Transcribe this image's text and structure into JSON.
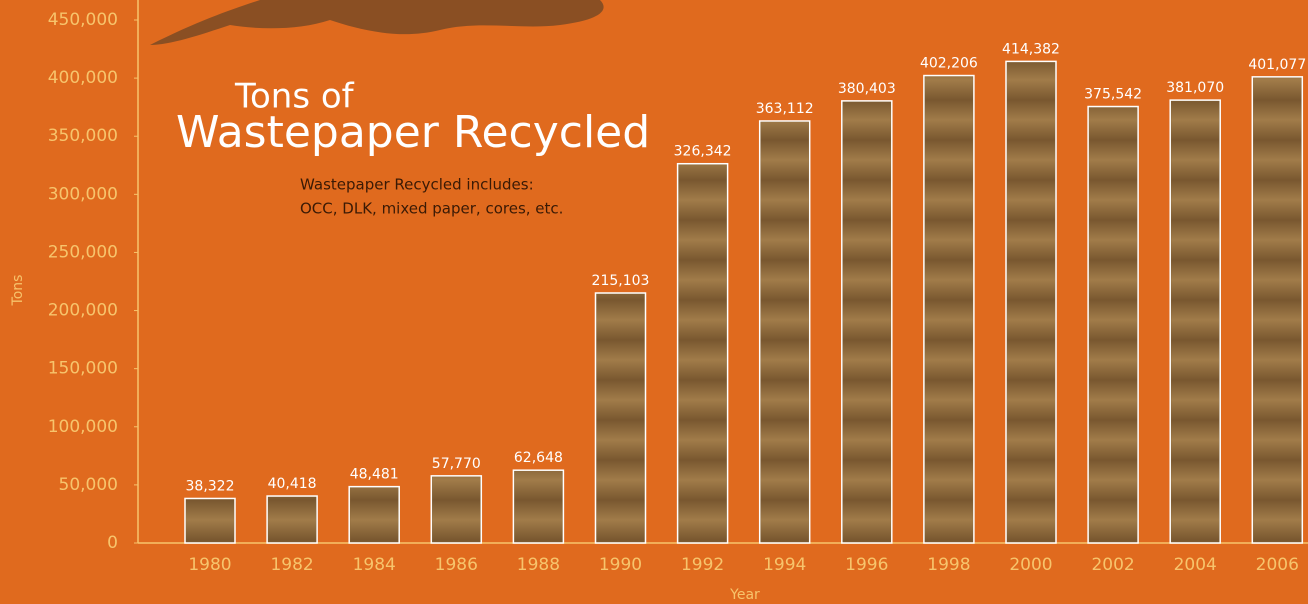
{
  "chart_data": {
    "type": "bar",
    "title": [
      "Tons of",
      "Wastepaper Recycled"
    ],
    "subtitle": [
      "Wastepaper Recycled includes:",
      "OCC, DLK, mixed paper, cores, etc."
    ],
    "x_label": "Year",
    "y_label": "Tons",
    "categories": [
      "1980",
      "1982",
      "1984",
      "1986",
      "1988",
      "1990",
      "1992",
      "1994",
      "1996",
      "1998",
      "2000",
      "2002",
      "2004",
      "2006"
    ],
    "values": [
      38322,
      40418,
      48481,
      57770,
      62648,
      215103,
      326342,
      363112,
      380403,
      402206,
      414382,
      375542,
      381070,
      401077
    ],
    "value_labels": [
      "38,322",
      "40,418",
      "48,481",
      "57,770",
      "62,648",
      "215,103",
      "326,342",
      "363,112",
      "380,403",
      "402,206",
      "414,382",
      "375,542",
      "381,070",
      "401,077"
    ],
    "color": "#8a6638",
    "ylim": [
      0,
      450000
    ],
    "yticks": [
      0,
      {
        "value": 50000,
        "label": "50,000"
      },
      {
        "value": 100000,
        "label": "100,000"
      },
      {
        "value": 150000,
        "label": "150,000"
      },
      {
        "value": 200000,
        "label": "200,000"
      },
      {
        "value": 250000,
        "label": "250,000"
      },
      {
        "value": 300000,
        "label": "300,000"
      },
      {
        "value": 350000,
        "label": "350,000"
      },
      {
        "value": 400000,
        "label": "400,000"
      },
      {
        "value": 450000,
        "label": "450,000"
      }
    ]
  }
}
